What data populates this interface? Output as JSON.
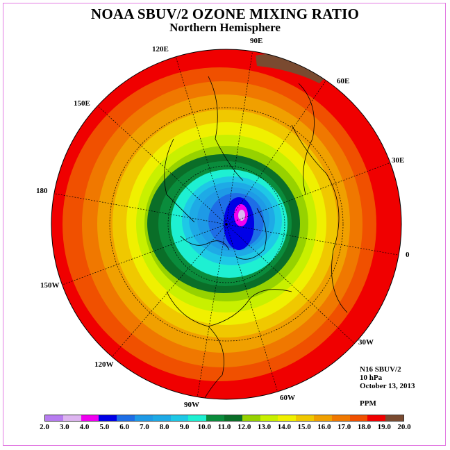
{
  "header": {
    "title": "NOAA SBUV/2 OZONE MIXING RATIO",
    "subtitle": "Northern Hemisphere"
  },
  "map": {
    "projection": "north-polar-stereographic",
    "longitude_labels": [
      "120E",
      "90E",
      "60E",
      "150E",
      "30E",
      "180",
      "0",
      "150W",
      "30W",
      "120W",
      "60W",
      "90W"
    ],
    "contour_bands_from_center_ppm": [
      4.0,
      5.0,
      6.0,
      7.0,
      8.0,
      9.0,
      10.0,
      11.0,
      12.0,
      13.0,
      14.0,
      15.0,
      16.0,
      17.0,
      18.0,
      19.0
    ]
  },
  "info": {
    "instrument": "N16 SBUV/2",
    "level": "10 hPa",
    "date": "October 13, 2013",
    "units": "PPM"
  },
  "legend": {
    "colors": [
      "#b77cf0",
      "#ddb4f0",
      "#f000f0",
      "#0000e6",
      "#1e6ee6",
      "#1e9ae6",
      "#1eaae6",
      "#1ec8e6",
      "#1ef0d2",
      "#0a8c3c",
      "#0a6e28",
      "#96d200",
      "#c8f000",
      "#f0f000",
      "#f0c800",
      "#f0a000",
      "#f07800",
      "#f05000",
      "#f00000",
      "#7a4a30"
    ],
    "ticks": [
      "2.0",
      "3.0",
      "4.0",
      "5.0",
      "6.0",
      "7.0",
      "8.0",
      "9.0",
      "10.0",
      "11.0",
      "12.0",
      "13.0",
      "14.0",
      "15.0",
      "16.0",
      "17.0",
      "18.0",
      "19.0",
      "20.0"
    ]
  }
}
